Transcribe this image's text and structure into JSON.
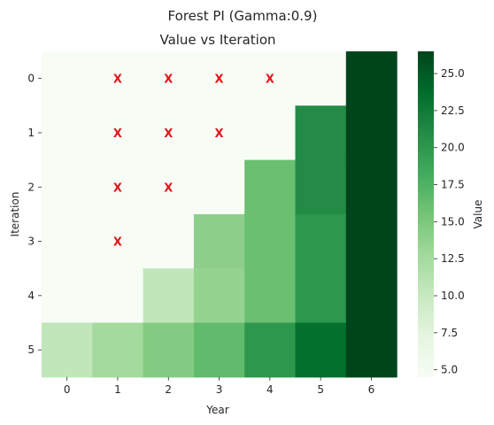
{
  "suptitle": "Forest PI (Gamma:0.9)",
  "chart_data": {
    "type": "heatmap",
    "title": "Value vs Iteration",
    "xlabel": "Year",
    "ylabel": "Iteration",
    "x_ticks": [
      "0",
      "1",
      "2",
      "3",
      "4",
      "5",
      "6"
    ],
    "y_ticks": [
      "0",
      "1",
      "2",
      "3",
      "4",
      "5"
    ],
    "values": [
      [
        4.5,
        4.5,
        4.5,
        4.5,
        4.5,
        4.5,
        26.5
      ],
      [
        4.5,
        4.5,
        4.5,
        4.5,
        4.5,
        21.0,
        26.5
      ],
      [
        4.5,
        4.5,
        4.5,
        4.5,
        16.0,
        21.0,
        26.5
      ],
      [
        4.5,
        4.5,
        4.5,
        14.0,
        16.0,
        20.0,
        26.5
      ],
      [
        4.5,
        4.5,
        10.5,
        13.5,
        16.0,
        20.0,
        26.5
      ],
      [
        10.5,
        12.5,
        14.5,
        16.5,
        20.0,
        23.5,
        29.0
      ]
    ],
    "markers": {
      "symbol": "X",
      "color": "#e8141c",
      "cells": [
        [
          0,
          1
        ],
        [
          0,
          2
        ],
        [
          0,
          3
        ],
        [
          0,
          4
        ],
        [
          1,
          1
        ],
        [
          1,
          2
        ],
        [
          1,
          3
        ],
        [
          2,
          1
        ],
        [
          2,
          2
        ],
        [
          3,
          1
        ]
      ]
    },
    "colorbar": {
      "label": "Value",
      "colormap": "Greens",
      "ticks": [
        "5.0",
        "7.5",
        "10.0",
        "12.5",
        "15.0",
        "17.5",
        "20.0",
        "22.5",
        "25.0"
      ],
      "range": [
        4.5,
        26.5
      ]
    },
    "colormap_stops": [
      "#f7fcf5",
      "#e5f5e0",
      "#c7e9c0",
      "#a1d99b",
      "#74c476",
      "#41ab5d",
      "#238b45",
      "#006d2c",
      "#00441b"
    ]
  }
}
